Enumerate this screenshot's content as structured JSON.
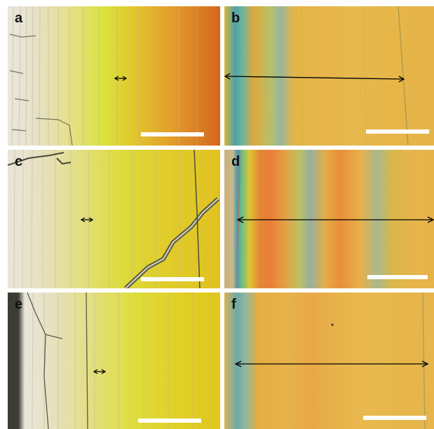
{
  "panels": [
    {
      "id": "a",
      "label": "a"
    },
    {
      "id": "b",
      "label": "b"
    },
    {
      "id": "c",
      "label": "c"
    },
    {
      "id": "d",
      "label": "d"
    },
    {
      "id": "e",
      "label": "e"
    },
    {
      "id": "f",
      "label": "f"
    }
  ],
  "colors": {
    "background": "#ffffff",
    "scale_bar": "#ffffff",
    "arrow": "#000000",
    "label_text": "#111111"
  }
}
